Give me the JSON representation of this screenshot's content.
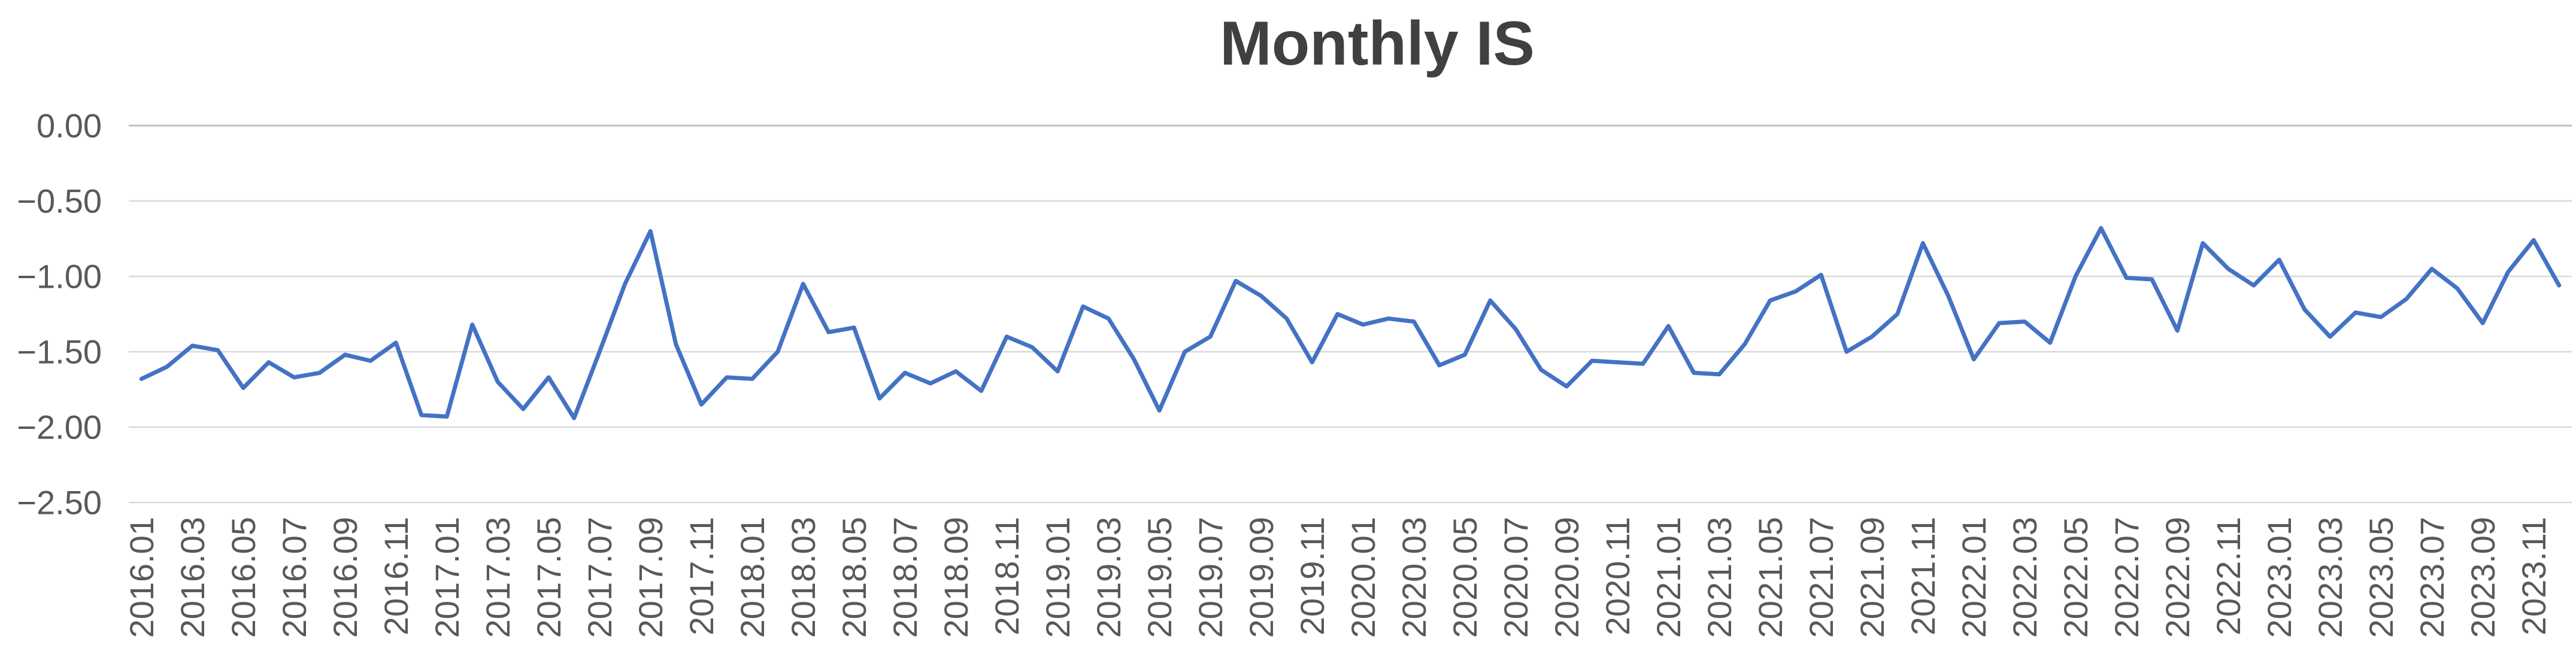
{
  "chart_data": {
    "type": "line",
    "title": "Monthly IS",
    "legend": "none",
    "grid": true,
    "x_tick_step": 2,
    "ylim": [
      -2.5,
      0.0
    ],
    "colors": {
      "series": "#4472C4",
      "gridline": "#D9D9D9",
      "zero_line": "#BFBFBF",
      "axis_labels": "#595959",
      "title": "#404040",
      "background": "#FFFFFF"
    },
    "y_ticks": [
      {
        "label": "0.00",
        "value": 0.0
      },
      {
        "label": "−0.50",
        "value": -0.5
      },
      {
        "label": "−1.00",
        "value": -1.0
      },
      {
        "label": "−1.50",
        "value": -1.5
      },
      {
        "label": "−2.00",
        "value": -2.0
      },
      {
        "label": "−2.50",
        "value": -2.5
      }
    ],
    "categories": [
      "2016.01",
      "2016.02",
      "2016.03",
      "2016.04",
      "2016.05",
      "2016.06",
      "2016.07",
      "2016.08",
      "2016.09",
      "2016.10",
      "2016.11",
      "2016.12",
      "2017.01",
      "2017.02",
      "2017.03",
      "2017.04",
      "2017.05",
      "2017.06",
      "2017.07",
      "2017.08",
      "2017.09",
      "2017.10",
      "2017.11",
      "2017.12",
      "2018.01",
      "2018.02",
      "2018.03",
      "2018.04",
      "2018.05",
      "2018.06",
      "2018.07",
      "2018.08",
      "2018.09",
      "2018.10",
      "2018.11",
      "2018.12",
      "2019.01",
      "2019.02",
      "2019.03",
      "2019.04",
      "2019.05",
      "2019.06",
      "2019.07",
      "2019.08",
      "2019.09",
      "2019.10",
      "2019.11",
      "2019.12",
      "2020.01",
      "2020.02",
      "2020.03",
      "2020.04",
      "2020.05",
      "2020.06",
      "2020.07",
      "2020.08",
      "2020.09",
      "2020.10",
      "2020.11",
      "2020.12",
      "2021.01",
      "2021.02",
      "2021.03",
      "2021.04",
      "2021.05",
      "2021.06",
      "2021.07",
      "2021.08",
      "2021.09",
      "2021.10",
      "2021.11",
      "2021.12",
      "2022.01",
      "2022.02",
      "2022.03",
      "2022.04",
      "2022.05",
      "2022.06",
      "2022.07",
      "2022.08",
      "2022.09",
      "2022.10",
      "2022.11",
      "2022.12",
      "2023.01",
      "2023.02",
      "2023.03",
      "2023.04",
      "2023.05",
      "2023.06",
      "2023.07",
      "2023.08",
      "2023.09",
      "2023.10",
      "2023.11",
      "2023.12"
    ],
    "series": [
      {
        "name": "Monthly IS",
        "color": "#4472C4",
        "values": [
          -1.68,
          -1.6,
          -1.46,
          -1.49,
          -1.74,
          -1.57,
          -1.67,
          -1.64,
          -1.52,
          -1.56,
          -1.44,
          -1.92,
          -1.93,
          -1.32,
          -1.7,
          -1.88,
          -1.67,
          -1.94,
          -1.5,
          -1.05,
          -0.7,
          -1.45,
          -1.85,
          -1.67,
          -1.68,
          -1.5,
          -1.05,
          -1.37,
          -1.34,
          -1.81,
          -1.64,
          -1.71,
          -1.63,
          -1.76,
          -1.4,
          -1.47,
          -1.63,
          -1.2,
          -1.28,
          -1.55,
          -1.89,
          -1.5,
          -1.4,
          -1.03,
          -1.13,
          -1.28,
          -1.57,
          -1.25,
          -1.32,
          -1.28,
          -1.3,
          -1.59,
          -1.52,
          -1.16,
          -1.35,
          -1.62,
          -1.73,
          -1.56,
          -1.57,
          -1.58,
          -1.33,
          -1.64,
          -1.65,
          -1.45,
          -1.16,
          -1.1,
          -0.99,
          -1.5,
          -1.4,
          -1.25,
          -0.78,
          -1.13,
          -1.55,
          -1.31,
          -1.3,
          -1.44,
          -1.0,
          -0.68,
          -1.01,
          -1.02,
          -1.36,
          -0.78,
          -0.95,
          -1.06,
          -0.89,
          -1.22,
          -1.4,
          -1.24,
          -1.27,
          -1.15,
          -0.95,
          -1.08,
          -1.31,
          -0.97,
          -0.76,
          -1.06
        ]
      }
    ]
  }
}
